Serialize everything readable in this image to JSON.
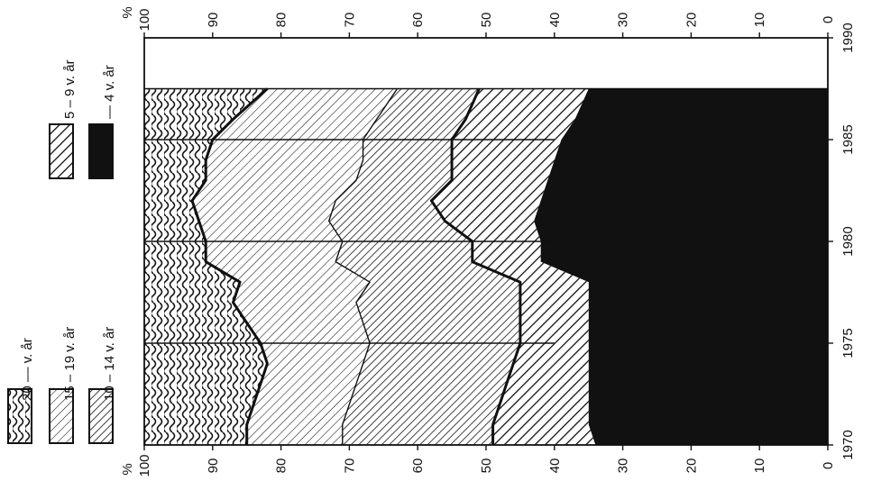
{
  "chart_data": {
    "type": "area",
    "stacked": true,
    "orientation": "rotated-90-clockwise",
    "unit_label": "%",
    "x_ticks": [
      "1970",
      "1975",
      "1980",
      "1985",
      "1990"
    ],
    "y_ticks": [
      "0",
      "10",
      "20",
      "30",
      "40",
      "50",
      "60",
      "70",
      "80",
      "90",
      "100"
    ],
    "xlim": [
      1970,
      1990
    ],
    "ylim": [
      0,
      100
    ],
    "data_end_year": 1987.5,
    "grid": "vertical lines at 1975, 1980, 1985",
    "legend_placement": "left",
    "x": [
      1970,
      1971,
      1972,
      1973,
      1974,
      1975,
      1976,
      1977,
      1978,
      1979,
      1980,
      1981,
      1982,
      1983,
      1984,
      1985,
      1986,
      1987.5
    ],
    "series": [
      {
        "name": "— 4 v. år",
        "pattern": "solid-black",
        "values": [
          34,
          35,
          35,
          35,
          35,
          35,
          35,
          35,
          35,
          42,
          42,
          43,
          42,
          41,
          40,
          39,
          37,
          35
        ]
      },
      {
        "name": "5 – 9 v. år",
        "pattern": "diagonal-hatch-fine",
        "values": [
          15,
          14,
          13,
          12,
          11,
          10,
          10,
          10,
          10,
          10,
          10,
          13,
          16,
          14,
          15,
          16,
          16,
          16
        ]
      },
      {
        "name": "10 – 14 v. år",
        "pattern": "diagonal-hatch-bold",
        "values": [
          22,
          22,
          22,
          22,
          22,
          22,
          23,
          24,
          22,
          20,
          19,
          17,
          14,
          14,
          13,
          13,
          13,
          12
        ]
      },
      {
        "name": "15 – 19 v. år",
        "pattern": "diagonal-hatch-light",
        "values": [
          14,
          14,
          14,
          14,
          14,
          16,
          17,
          18,
          19,
          19,
          20,
          19,
          21,
          22,
          23,
          22,
          21,
          19
        ]
      },
      {
        "name": "20 –– v. år",
        "pattern": "wavy-lines",
        "values": [
          15,
          15,
          16,
          17,
          18,
          17,
          15,
          13,
          14,
          9,
          9,
          8,
          7,
          9,
          9,
          10,
          13,
          18
        ]
      }
    ]
  },
  "legend": {
    "items": [
      {
        "label": "20 –– v. år",
        "pattern": "wavy-lines"
      },
      {
        "label": "15 – 19 v. år",
        "pattern": "diagonal-hatch-light"
      },
      {
        "label": "10 – 14 v. år",
        "pattern": "diagonal-hatch-bold"
      },
      {
        "label": "5 – 9 v. år",
        "pattern": "diagonal-hatch-fine"
      },
      {
        "label": "— 4 v. år",
        "pattern": "solid-black"
      }
    ]
  },
  "colors": {
    "ink": "#111111",
    "paper": "#ffffff"
  }
}
